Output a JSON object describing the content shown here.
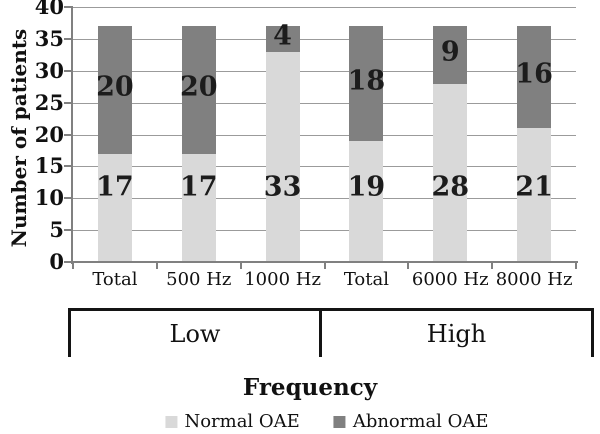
{
  "chart_data": {
    "type": "bar",
    "stacked": true,
    "title": "",
    "xlabel": "Frequency",
    "ylabel": "Number of patients",
    "ylim": [
      0,
      40
    ],
    "ytick_step": 5,
    "ytick_labels": [
      "40",
      "35",
      "30",
      "25",
      "20",
      "15",
      "10",
      "5",
      "0"
    ],
    "grid": true,
    "legend_position": "bottom",
    "categories": [
      "Total",
      "500 Hz",
      "1000 Hz",
      "Total",
      "6000 Hz",
      "8000 Hz"
    ],
    "series": [
      {
        "name": "Normal OAE",
        "color": "#d9d9d9",
        "values": [
          17,
          17,
          33,
          19,
          28,
          21
        ]
      },
      {
        "name": "Abnormal OAE",
        "color": "#808080",
        "values": [
          20,
          20,
          4,
          18,
          9,
          16
        ]
      }
    ],
    "bar_totals": [
      37,
      37,
      37,
      37,
      37,
      37
    ],
    "group_brackets": [
      {
        "label": "Low",
        "categories": [
          "Total",
          "500 Hz",
          "1000 Hz"
        ]
      },
      {
        "label": "High",
        "categories": [
          "Total",
          "6000 Hz",
          "8000 Hz"
        ]
      }
    ]
  },
  "colors": {
    "normal_bar": "#d9d9d9",
    "abnormal_bar": "#808080",
    "gridline": "#9b9b9b",
    "axis": "#808080",
    "bracket": "#141414",
    "text": "#111111"
  }
}
